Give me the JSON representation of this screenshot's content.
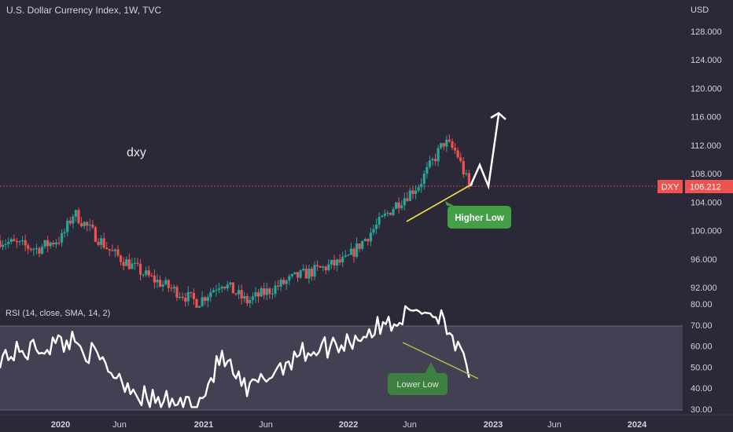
{
  "header": {
    "title": "U.S. Dollar Currency Index, 1W, TVC"
  },
  "price_scale": {
    "unit": "USD",
    "last_price": "106.212",
    "symbol_tag": "DXY"
  },
  "annotations": {
    "note": "dxy",
    "higher_low": "Higher Low",
    "lower_low": "Lower Low"
  },
  "indicator": {
    "label": "RSI (14, close, SMA, 14, 2)"
  },
  "colors": {
    "background": "#2b2838",
    "up": "#26a69a",
    "down": "#ef5350",
    "trendline_price": "#f2e24b",
    "trendline_rsi": "#b9bf4a",
    "badge_green": "#43a047",
    "last_price_line": "#ef5350",
    "rsi_line": "#ffffff",
    "rsi_band": "#4b4a5c"
  },
  "chart_data": [
    {
      "type": "candlestick",
      "title": "U.S. Dollar Currency Index, 1W, TVC",
      "yaxis_ticks": [
        "92.000",
        "96.000",
        "100.000",
        "104.000",
        "108.000",
        "112.000",
        "116.000",
        "120.000",
        "124.000",
        "128.000"
      ],
      "ylim": [
        88.8,
        131.6
      ],
      "xaxis_ticks": [
        "2020",
        "Jun",
        "2021",
        "Jun",
        "2022",
        "Jun",
        "2023",
        "Jun",
        "2024"
      ],
      "approx_closes": [
        {
          "date": "2019-09",
          "value": 98.6
        },
        {
          "date": "2019-12",
          "value": 97.4
        },
        {
          "date": "2020-02",
          "value": 99.0
        },
        {
          "date": "2020-03",
          "value": 102.5
        },
        {
          "date": "2020-06",
          "value": 97.0
        },
        {
          "date": "2020-09",
          "value": 93.5
        },
        {
          "date": "2021-01",
          "value": 89.9
        },
        {
          "date": "2021-03",
          "value": 92.8
        },
        {
          "date": "2021-05",
          "value": 90.0
        },
        {
          "date": "2021-09",
          "value": 93.5
        },
        {
          "date": "2022-01",
          "value": 95.8
        },
        {
          "date": "2022-05",
          "value": 103.5
        },
        {
          "date": "2022-07",
          "value": 106.5
        },
        {
          "date": "2022-09",
          "value": 112.5
        },
        {
          "date": "2022-10",
          "value": 111.0
        },
        {
          "date": "2022-11",
          "value": 106.2
        }
      ],
      "last_price": 106.212,
      "projection": [
        106.2,
        108.6,
        106.2,
        115.8
      ]
    },
    {
      "type": "line",
      "title": "RSI (14, close, SMA, 14, 2)",
      "yaxis_ticks": [
        "30.00",
        "40.00",
        "50.00",
        "60.00",
        "70.00",
        "80.00"
      ],
      "ylim": [
        30,
        80
      ],
      "band": [
        30,
        70
      ],
      "approx_values": [
        {
          "date": "2019-09",
          "value": 55
        },
        {
          "date": "2020-03",
          "value": 63
        },
        {
          "date": "2020-09",
          "value": 34
        },
        {
          "date": "2021-01",
          "value": 32
        },
        {
          "date": "2021-03",
          "value": 55
        },
        {
          "date": "2021-05",
          "value": 38
        },
        {
          "date": "2021-09",
          "value": 56
        },
        {
          "date": "2022-01",
          "value": 62
        },
        {
          "date": "2022-05",
          "value": 72
        },
        {
          "date": "2022-07",
          "value": 78
        },
        {
          "date": "2022-09",
          "value": 74
        },
        {
          "date": "2022-11",
          "value": 45
        }
      ]
    }
  ]
}
